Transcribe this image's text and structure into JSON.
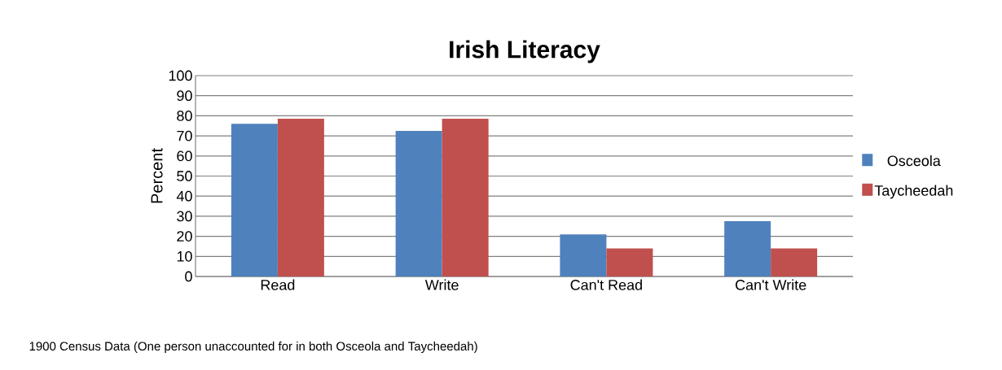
{
  "chart_data": {
    "type": "bar",
    "title": "Irish Literacy",
    "ylabel": "Percent",
    "categories": [
      "Read",
      "Write",
      "Can't Read",
      "Can't Write"
    ],
    "series": [
      {
        "name": "Osceola",
        "color": "#4f81bd",
        "values": [
          76,
          72.5,
          21,
          27.5
        ]
      },
      {
        "name": "Taycheedah",
        "color": "#c0504d",
        "values": [
          78.5,
          78.5,
          14,
          14
        ]
      }
    ],
    "ylim": [
      0,
      100
    ],
    "yticks": [
      0,
      10,
      20,
      30,
      40,
      50,
      60,
      70,
      80,
      90,
      100
    ],
    "grid": "y",
    "legend": "right",
    "annotations": [
      "1900 Census Data (One person unaccounted for in both Osceola and Taycheedah)"
    ]
  }
}
